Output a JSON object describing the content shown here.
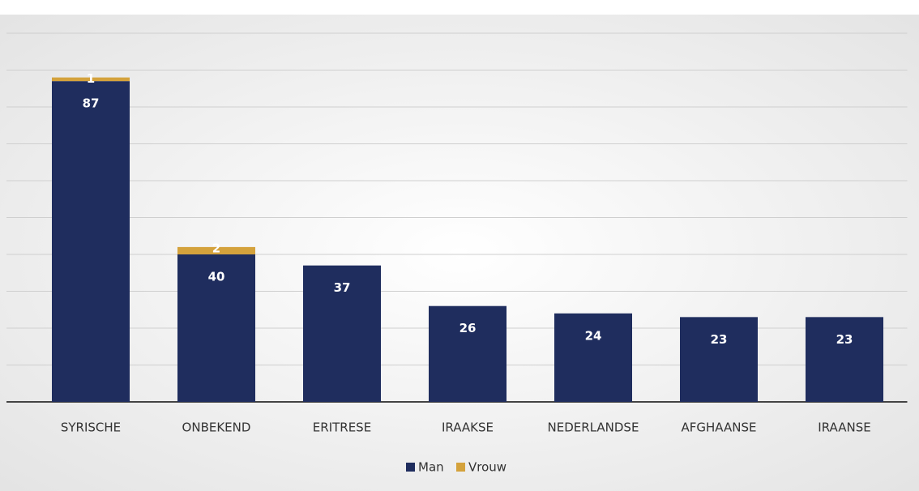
{
  "chart_data": {
    "type": "stacked_bar",
    "categories": [
      "SYRISCHE",
      "ONBEKEND",
      "ERITRESE",
      "IRAAKSE",
      "NEDERLANDSE",
      "AFGHAANSE",
      "IRAANSE"
    ],
    "series": [
      {
        "name": "Man",
        "color": "#1f2d5e",
        "values": [
          87,
          40,
          37,
          26,
          24,
          23,
          23
        ]
      },
      {
        "name": "Vrouw",
        "color": "#d4a23c",
        "values": [
          1,
          2,
          0,
          0,
          0,
          0,
          0
        ]
      }
    ],
    "ylim": [
      0,
      100
    ],
    "yticks": [
      0,
      10,
      20,
      30,
      40,
      50,
      60,
      70,
      80,
      90,
      100
    ],
    "grid": true,
    "legend": "bottom"
  }
}
